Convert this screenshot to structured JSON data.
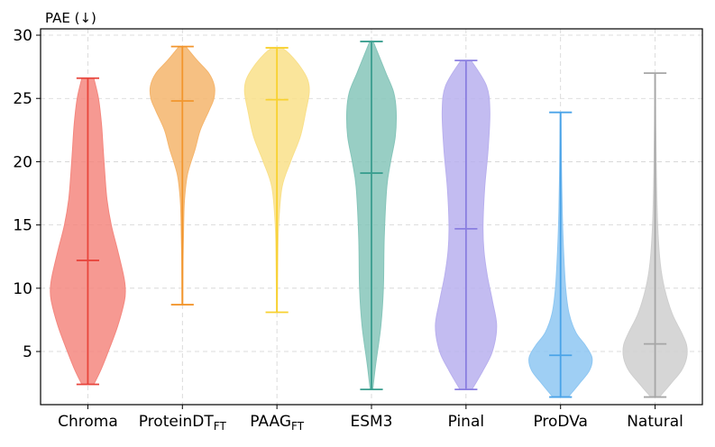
{
  "chart_data": {
    "type": "violin",
    "ylabel": "PAE (↓)",
    "ylim": [
      0.8,
      30.5
    ],
    "yticks": [
      5,
      10,
      15,
      20,
      25,
      30
    ],
    "grid": true,
    "series": [
      {
        "name": "Chroma",
        "sub": "",
        "color": "#e8453c",
        "fill": "#f4877f",
        "min": 2.4,
        "max": 26.6,
        "median": 12.2,
        "profile": [
          [
            2.4,
            0.14
          ],
          [
            3.5,
            0.3
          ],
          [
            5,
            0.48
          ],
          [
            7,
            0.7
          ],
          [
            9,
            0.86
          ],
          [
            10,
            0.88
          ],
          [
            11,
            0.84
          ],
          [
            13,
            0.7
          ],
          [
            15,
            0.55
          ],
          [
            17,
            0.45
          ],
          [
            19,
            0.4
          ],
          [
            21,
            0.36
          ],
          [
            23,
            0.32
          ],
          [
            25,
            0.25
          ],
          [
            26.6,
            0.14
          ]
        ]
      },
      {
        "name": "ProteinDT",
        "sub": "FT",
        "color": "#f2962e",
        "fill": "#f5b56c",
        "min": 8.7,
        "max": 29.1,
        "median": 24.8,
        "profile": [
          [
            8.7,
            0.01
          ],
          [
            12,
            0.015
          ],
          [
            15,
            0.03
          ],
          [
            17,
            0.05
          ],
          [
            19,
            0.12
          ],
          [
            21,
            0.3
          ],
          [
            22.5,
            0.42
          ],
          [
            24,
            0.62
          ],
          [
            25,
            0.74
          ],
          [
            26,
            0.75
          ],
          [
            27,
            0.62
          ],
          [
            28,
            0.35
          ],
          [
            29.1,
            0.08
          ]
        ]
      },
      {
        "name": "PAAG",
        "sub": "FT",
        "color": "#f8d12f",
        "fill": "#f9e08a",
        "min": 8.1,
        "max": 29.0,
        "median": 24.9,
        "profile": [
          [
            8.1,
            0.01
          ],
          [
            12,
            0.02
          ],
          [
            15,
            0.04
          ],
          [
            18,
            0.12
          ],
          [
            20,
            0.32
          ],
          [
            22,
            0.55
          ],
          [
            24,
            0.68
          ],
          [
            25.5,
            0.76
          ],
          [
            26.5,
            0.72
          ],
          [
            27.5,
            0.55
          ],
          [
            28.5,
            0.3
          ],
          [
            29,
            0.12
          ]
        ]
      },
      {
        "name": "ESM3",
        "sub": "",
        "color": "#3a9e8f",
        "fill": "#86c5ba",
        "min": 2.0,
        "max": 29.5,
        "median": 19.1,
        "profile": [
          [
            2,
            0.03
          ],
          [
            4,
            0.1
          ],
          [
            7,
            0.22
          ],
          [
            10,
            0.28
          ],
          [
            14,
            0.3
          ],
          [
            18,
            0.36
          ],
          [
            20,
            0.45
          ],
          [
            22,
            0.56
          ],
          [
            24,
            0.58
          ],
          [
            25.5,
            0.52
          ],
          [
            27,
            0.34
          ],
          [
            28.5,
            0.16
          ],
          [
            29.5,
            0.04
          ]
        ]
      },
      {
        "name": "Pinal",
        "sub": "",
        "color": "#8a7ee0",
        "fill": "#b9b0ee",
        "min": 2.0,
        "max": 28.0,
        "median": 14.7,
        "profile": [
          [
            2,
            0.14
          ],
          [
            3.5,
            0.4
          ],
          [
            5,
            0.62
          ],
          [
            7,
            0.72
          ],
          [
            9,
            0.62
          ],
          [
            11,
            0.5
          ],
          [
            13,
            0.42
          ],
          [
            15,
            0.4
          ],
          [
            18,
            0.44
          ],
          [
            21,
            0.52
          ],
          [
            24,
            0.56
          ],
          [
            26,
            0.48
          ],
          [
            28,
            0.12
          ]
        ]
      },
      {
        "name": "ProDVa",
        "sub": "",
        "color": "#4aa3e8",
        "fill": "#8ec7f2",
        "min": 1.4,
        "max": 23.9,
        "median": 4.7,
        "profile": [
          [
            1.4,
            0.18
          ],
          [
            2.5,
            0.45
          ],
          [
            3.5,
            0.68
          ],
          [
            4.5,
            0.74
          ],
          [
            5.5,
            0.58
          ],
          [
            6.5,
            0.36
          ],
          [
            8,
            0.2
          ],
          [
            10,
            0.12
          ],
          [
            13,
            0.07
          ],
          [
            16,
            0.04
          ],
          [
            20,
            0.02
          ],
          [
            23.9,
            0.01
          ]
        ]
      },
      {
        "name": "Natural",
        "sub": "",
        "color": "#a6a6a6",
        "fill": "#cfcfcf",
        "min": 1.4,
        "max": 27.0,
        "median": 5.6,
        "profile": [
          [
            1.4,
            0.1
          ],
          [
            2.5,
            0.38
          ],
          [
            3.5,
            0.62
          ],
          [
            4.5,
            0.74
          ],
          [
            5.5,
            0.74
          ],
          [
            6.5,
            0.62
          ],
          [
            8,
            0.4
          ],
          [
            10,
            0.22
          ],
          [
            12,
            0.12
          ],
          [
            15,
            0.06
          ],
          [
            19,
            0.03
          ],
          [
            23,
            0.015
          ],
          [
            27,
            0.01
          ]
        ]
      }
    ]
  }
}
